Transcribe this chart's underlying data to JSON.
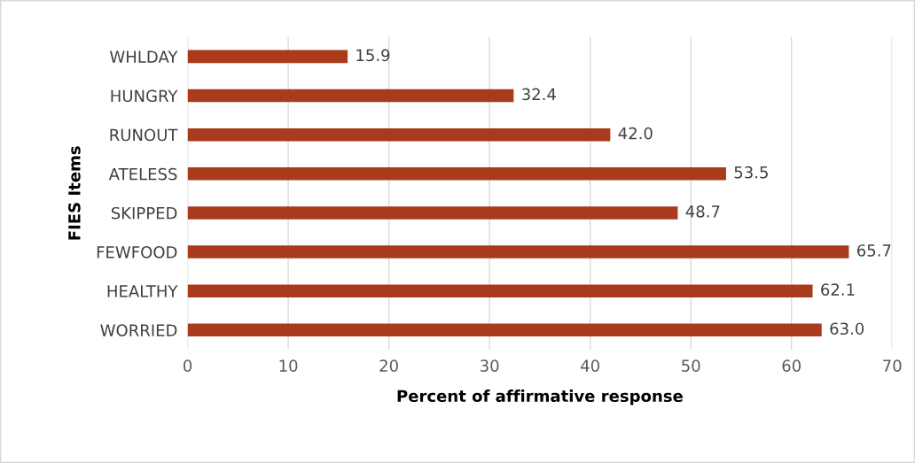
{
  "chart_data": {
    "type": "bar",
    "orientation": "horizontal",
    "xlabel": "Percent of affirmative response",
    "ylabel": "FIES Items",
    "categories": [
      "WHLDAY",
      "HUNGRY",
      "RUNOUT",
      "ATELESS",
      "SKIPPED",
      "FEWFOOD",
      "HEALTHY",
      "WORRIED"
    ],
    "values": [
      15.9,
      32.4,
      42.0,
      53.5,
      48.7,
      65.7,
      62.1,
      63.0
    ],
    "value_labels": [
      "15.9",
      "32.4",
      "42.0",
      "53.5",
      "48.7",
      "65.7",
      "62.1",
      "63.0"
    ],
    "color": "#a93a1b",
    "xlim": [
      0,
      70
    ],
    "xticks": [
      0,
      10,
      20,
      30,
      40,
      50,
      60,
      70
    ],
    "grid": "x",
    "legend": false
  }
}
